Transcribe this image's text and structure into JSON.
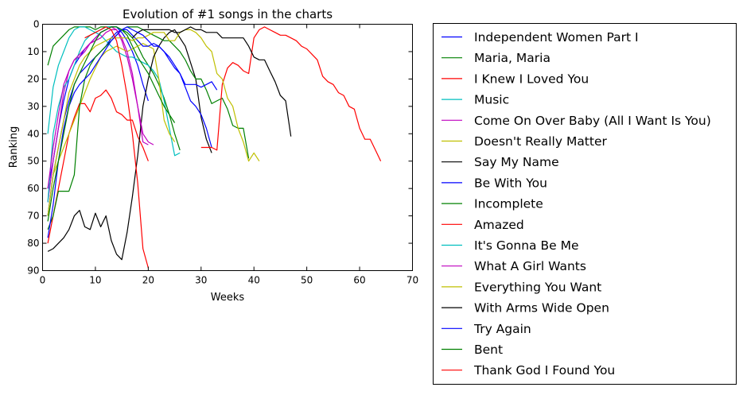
{
  "chart_data": {
    "type": "line",
    "title": "Evolution of #1 songs in the charts",
    "xlabel": "Weeks",
    "ylabel": "Ranking",
    "xlim": [
      0,
      70
    ],
    "ylim": [
      90,
      0
    ],
    "y_inverted": true,
    "xticks": [
      0,
      10,
      20,
      30,
      40,
      50,
      60,
      70
    ],
    "yticks": [
      0,
      10,
      20,
      30,
      40,
      50,
      60,
      70,
      80,
      90
    ],
    "grid": false,
    "legend_position": "outside-right",
    "series": [
      {
        "name": "Independent Women Part I",
        "color": "#0000ff",
        "x": [
          1,
          2,
          3,
          4,
          5,
          6,
          7,
          8,
          9,
          10,
          11,
          12,
          13,
          14,
          15,
          16,
          17,
          18,
          19,
          20
        ],
        "y": [
          60,
          50,
          38,
          28,
          20,
          15,
          12,
          9,
          7,
          5,
          3,
          2,
          1,
          1,
          3,
          6,
          10,
          15,
          22,
          28
        ]
      },
      {
        "name": "Maria, Maria",
        "color": "#008000",
        "x": [
          1,
          2,
          3,
          4,
          5,
          6,
          7,
          8,
          9,
          10,
          11,
          12,
          13,
          14,
          15,
          16,
          17,
          18,
          19,
          20,
          21,
          22,
          23,
          24,
          25,
          26
        ],
        "y": [
          15,
          8,
          6,
          4,
          2,
          1,
          1,
          1,
          1,
          2,
          1,
          1,
          1,
          1,
          2,
          3,
          5,
          8,
          12,
          15,
          18,
          22,
          27,
          33,
          40,
          46
        ]
      },
      {
        "name": "I Knew I Loved You",
        "color": "#ff0000",
        "x": [
          1,
          2,
          3,
          4,
          5,
          6,
          7,
          8,
          9,
          10,
          11,
          12,
          13,
          14,
          15,
          16,
          17,
          18,
          19,
          20
        ],
        "y": [
          80,
          70,
          60,
          50,
          40,
          34,
          29,
          29,
          32,
          27,
          26,
          24,
          27,
          32,
          33,
          35,
          35,
          41,
          45,
          50
        ]
      },
      {
        "name": "Music",
        "color": "#00bfbf",
        "x": [
          1,
          2,
          3,
          4,
          5,
          6,
          7,
          8,
          9,
          10,
          11,
          12,
          13,
          14,
          15,
          16,
          17,
          18,
          19,
          20,
          21,
          22,
          23,
          24,
          25,
          26
        ],
        "y": [
          40,
          23,
          15,
          10,
          5,
          2,
          1,
          1,
          2,
          3,
          4,
          6,
          8,
          10,
          11,
          12,
          12,
          13,
          14,
          15,
          17,
          20,
          28,
          38,
          48,
          47
        ]
      },
      {
        "name": "Come On Over Baby (All I Want Is You)",
        "color": "#bf00bf",
        "x": [
          1,
          2,
          3,
          4,
          5,
          6,
          7,
          8,
          9,
          10,
          11,
          12,
          13,
          14,
          15,
          16,
          17,
          18,
          19,
          20
        ],
        "y": [
          65,
          50,
          38,
          25,
          17,
          13,
          12,
          10,
          7,
          5,
          3,
          2,
          1,
          2,
          6,
          12,
          20,
          30,
          43,
          44
        ]
      },
      {
        "name": "Doesn't Really Matter",
        "color": "#bfbf00",
        "x": [
          1,
          2,
          3,
          4,
          5,
          6,
          7,
          8,
          9,
          10,
          11,
          12,
          13,
          14,
          15,
          16,
          17,
          18,
          19,
          20,
          21,
          22,
          23,
          24,
          25
        ],
        "y": [
          70,
          55,
          50,
          45,
          40,
          35,
          30,
          25,
          20,
          16,
          12,
          10,
          9,
          8,
          9,
          10,
          9,
          8,
          7,
          8,
          9,
          20,
          35,
          40,
          43
        ]
      },
      {
        "name": "Say My Name",
        "color": "#000000",
        "x": [
          1,
          2,
          3,
          4,
          5,
          6,
          7,
          8,
          9,
          10,
          11,
          12,
          13,
          14,
          15,
          16,
          17,
          18,
          19,
          20,
          21,
          22,
          23,
          24,
          25,
          26,
          27,
          28,
          29,
          30,
          31,
          32
        ],
        "y": [
          83,
          82,
          80,
          78,
          75,
          70,
          68,
          74,
          75,
          69,
          74,
          70,
          79,
          84,
          86,
          76,
          63,
          48,
          30,
          20,
          12,
          8,
          5,
          3,
          2,
          5,
          8,
          14,
          20,
          34,
          42,
          47
        ]
      },
      {
        "name": "Be With You",
        "color": "#0000ff",
        "x": [
          1,
          2,
          3,
          4,
          5,
          6,
          7,
          8,
          9,
          10,
          11,
          12,
          13,
          14,
          15,
          16,
          17,
          18,
          19,
          20,
          21,
          22,
          23,
          24,
          25,
          26,
          27,
          28,
          29,
          30,
          31,
          32
        ],
        "y": [
          70,
          55,
          45,
          35,
          28,
          22,
          18,
          16,
          14,
          12,
          10,
          8,
          5,
          3,
          2,
          2,
          4,
          6,
          8,
          8,
          7,
          8,
          10,
          12,
          15,
          18,
          23,
          28,
          30,
          33,
          38,
          45
        ]
      },
      {
        "name": "Incomplete",
        "color": "#008000",
        "x": [
          1,
          2,
          3,
          4,
          5,
          6,
          7,
          8,
          9,
          10,
          11,
          12,
          13,
          14,
          15,
          16,
          17,
          18,
          19,
          20,
          21,
          22,
          23,
          24,
          25,
          26,
          27,
          28,
          29,
          30,
          31,
          32,
          33,
          34,
          35,
          36,
          37,
          38,
          39
        ],
        "y": [
          75,
          70,
          61,
          61,
          61,
          55,
          30,
          20,
          15,
          12,
          10,
          8,
          6,
          4,
          2,
          1,
          1,
          1,
          2,
          3,
          4,
          5,
          6,
          6,
          8,
          10,
          13,
          17,
          20,
          20,
          24,
          29,
          28,
          27,
          31,
          37,
          38,
          38,
          49
        ]
      },
      {
        "name": "Amazed",
        "color": "#ff0000",
        "x": [
          30,
          31,
          32,
          33,
          34,
          35,
          36,
          37,
          38,
          39,
          40,
          41,
          42,
          43,
          44,
          45,
          46,
          47,
          48,
          49,
          50,
          51,
          52,
          53,
          54,
          55,
          56,
          57,
          58,
          59,
          60,
          61,
          62,
          63,
          64
        ],
        "y": [
          45,
          45,
          45,
          46,
          22,
          16,
          14,
          15,
          17,
          18,
          5,
          2,
          1,
          2,
          3,
          4,
          4,
          5,
          6,
          8,
          9,
          11,
          13,
          19,
          21,
          22,
          25,
          26,
          30,
          31,
          38,
          42,
          42,
          46,
          50
        ]
      },
      {
        "name": "It's Gonna Be Me",
        "color": "#00bfbf",
        "x": [
          1,
          2,
          3,
          4,
          5,
          6,
          7,
          8,
          9,
          10,
          11,
          12,
          13,
          14,
          15
        ],
        "y": [
          65,
          40,
          30,
          23,
          20,
          15,
          10,
          6,
          4,
          3,
          2,
          1,
          1,
          1,
          2
        ]
      },
      {
        "name": "What A Girl Wants",
        "color": "#bf00bf",
        "x": [
          1,
          2,
          3,
          4,
          5,
          6,
          7,
          8,
          9,
          10,
          11,
          12,
          13,
          14,
          15,
          16,
          17,
          18,
          19,
          20,
          21
        ],
        "y": [
          60,
          45,
          33,
          22,
          17,
          13,
          11,
          9,
          7,
          6,
          5,
          3,
          2,
          2,
          5,
          10,
          18,
          30,
          40,
          43,
          44
        ]
      },
      {
        "name": "Everything You Want",
        "color": "#bfbf00",
        "x": [
          1,
          2,
          3,
          4,
          5,
          6,
          7,
          8,
          9,
          10,
          11,
          12,
          13,
          14,
          15,
          16,
          17,
          18,
          19,
          20,
          21,
          22,
          23,
          24,
          25,
          26,
          27,
          28,
          29,
          30,
          31,
          32,
          33,
          34,
          35,
          36,
          37,
          38,
          39,
          40,
          41
        ],
        "y": [
          70,
          55,
          45,
          35,
          25,
          20,
          15,
          12,
          10,
          8,
          7,
          6,
          5,
          5,
          5,
          5,
          6,
          5,
          5,
          4,
          3,
          3,
          3,
          6,
          6,
          3,
          2,
          2,
          3,
          5,
          8,
          10,
          18,
          20,
          27,
          30,
          38,
          43,
          50,
          47,
          50
        ]
      },
      {
        "name": "With Arms Wide Open",
        "color": "#000000",
        "x": [
          17,
          18,
          19,
          20,
          21,
          22,
          23,
          24,
          25,
          26,
          27,
          28,
          29,
          30,
          31,
          32,
          33,
          34,
          35,
          36,
          37,
          38,
          39,
          40,
          41,
          42,
          43,
          44,
          45,
          46,
          47
        ],
        "y": [
          5,
          3,
          2,
          2,
          2,
          2,
          2,
          2,
          3,
          3,
          2,
          1,
          2,
          2,
          3,
          3,
          3,
          5,
          5,
          5,
          5,
          5,
          8,
          12,
          13,
          13,
          17,
          21,
          26,
          28,
          41
        ]
      },
      {
        "name": "Try Again",
        "color": "#0000ff",
        "x": [
          1,
          2,
          3,
          4,
          5,
          6,
          7,
          8,
          9,
          10,
          11,
          12,
          13,
          14,
          15,
          16,
          17,
          18,
          19,
          20,
          21,
          22,
          23,
          24,
          25,
          26,
          27,
          28,
          29,
          30,
          31,
          32,
          33
        ],
        "y": [
          78,
          66,
          50,
          38,
          30,
          25,
          22,
          20,
          18,
          15,
          12,
          9,
          6,
          4,
          2,
          1,
          2,
          3,
          4,
          6,
          8,
          8,
          10,
          13,
          16,
          18,
          22,
          22,
          22,
          23,
          22,
          21,
          24
        ]
      },
      {
        "name": "Bent",
        "color": "#008000",
        "x": [
          1,
          2,
          3,
          4,
          5,
          6,
          7,
          8,
          9,
          10,
          11,
          12,
          13,
          14,
          15,
          16,
          17,
          18,
          19,
          20,
          21,
          22,
          23,
          24,
          25
        ],
        "y": [
          72,
          60,
          50,
          40,
          30,
          22,
          18,
          14,
          10,
          6,
          3,
          2,
          1,
          1,
          2,
          4,
          8,
          12,
          15,
          18,
          22,
          26,
          30,
          33,
          36
        ]
      },
      {
        "name": "Thank God I Found You",
        "color": "#ff0000",
        "x": [
          8,
          9,
          10,
          11,
          12,
          13,
          14,
          15,
          16,
          17,
          18,
          19,
          20
        ],
        "y": [
          5,
          4,
          3,
          2,
          1,
          2,
          6,
          15,
          26,
          40,
          58,
          82,
          89
        ]
      }
    ]
  }
}
